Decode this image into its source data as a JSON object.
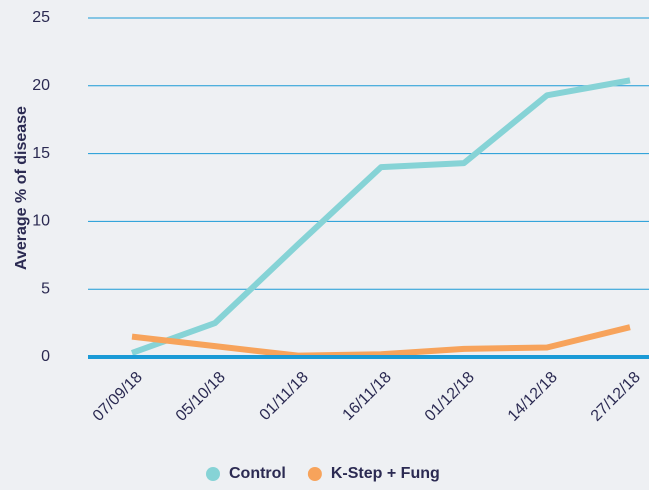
{
  "chart_data": {
    "type": "line",
    "ylabel": "Average % of disease",
    "categories": [
      "07/09/18",
      "05/10/18",
      "01/11/18",
      "16/11/18",
      "01/12/18",
      "14/12/18",
      "27/12/18"
    ],
    "series": [
      {
        "name": "Control",
        "color": "#86d3d6",
        "values": [
          0.3,
          2.5,
          8.3,
          14.0,
          14.3,
          19.3,
          20.4
        ]
      },
      {
        "name": "K-Step + Fung",
        "color": "#f7a35b",
        "values": [
          1.5,
          0.8,
          0.1,
          0.2,
          0.6,
          0.7,
          2.2
        ]
      }
    ],
    "ylim": [
      0,
      25
    ],
    "yticks": [
      0,
      5,
      10,
      15,
      20,
      25
    ],
    "grid": true,
    "grid_color": "#1a9ad6",
    "legend": "bottom"
  }
}
